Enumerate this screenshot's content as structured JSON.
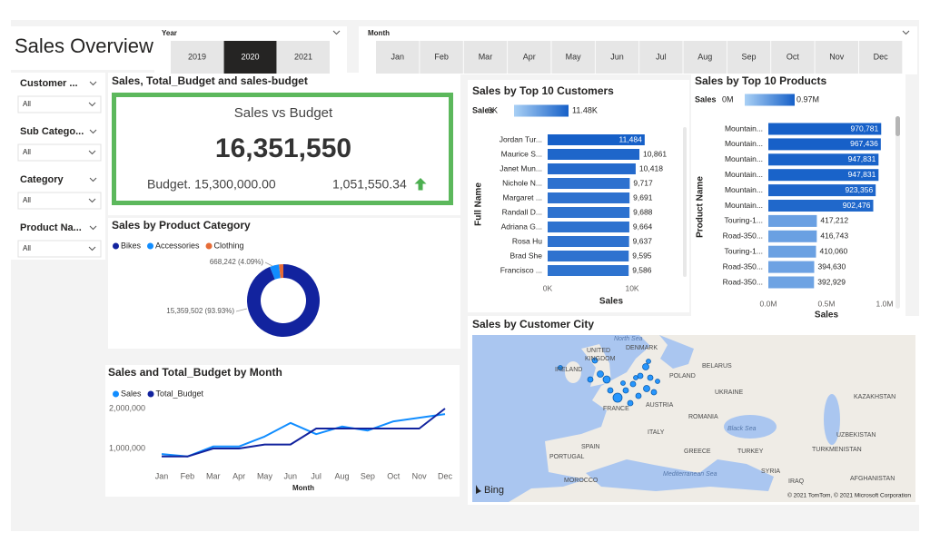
{
  "header": {
    "title": "Sales Overview"
  },
  "year_slicer": {
    "title": "Year",
    "options": [
      "2019",
      "2020",
      "2021"
    ],
    "selected": "2020"
  },
  "month_slicer": {
    "title": "Month",
    "options": [
      "Jan",
      "Feb",
      "Mar",
      "Apr",
      "May",
      "Jun",
      "Jul",
      "Aug",
      "Sep",
      "Oct",
      "Nov",
      "Dec"
    ]
  },
  "filters": [
    {
      "title": "Customer ...",
      "value": "All"
    },
    {
      "title": "Sub Catego...",
      "value": "All"
    },
    {
      "title": "Category",
      "value": "All"
    },
    {
      "title": "Product Na...",
      "value": "All"
    }
  ],
  "card": {
    "title": "Sales, Total_Budget and sales-budget",
    "heading": "Sales vs Budget",
    "value": "16,351,550",
    "budget": "Budget. 15,300,000.00",
    "variance": "1,051,550.34"
  },
  "chart_data": [
    {
      "type": "pie",
      "title": "Sales by Product Category",
      "donut": true,
      "categories": [
        "Bikes",
        "Accessories",
        "Clothing"
      ],
      "values": [
        15359502,
        668242,
        323806
      ],
      "value_labels": [
        "15,359,502 (93.93%)",
        "668,242 (4.09%)",
        null
      ],
      "colors": [
        "#12239e",
        "#118dff",
        "#e66c37"
      ]
    },
    {
      "type": "line",
      "title": "Sales and Total_Budget by Month",
      "x_label": "Month",
      "categories": [
        "Jan",
        "Feb",
        "Mar",
        "Apr",
        "May",
        "Jun",
        "Jul",
        "Aug",
        "Sep",
        "Oct",
        "Nov",
        "Dec"
      ],
      "series": [
        {
          "name": "Sales",
          "color": "#118dff",
          "values": [
            860000,
            800000,
            1050000,
            1050000,
            1300000,
            1640000,
            1360000,
            1550000,
            1450000,
            1680000,
            1770000,
            1860000
          ]
        },
        {
          "name": "Total_Budget",
          "color": "#12239e",
          "values": [
            800000,
            800000,
            1000000,
            1000000,
            1100000,
            1100000,
            1500000,
            1500000,
            1500000,
            1500000,
            1500000,
            2000000
          ]
        }
      ],
      "ylim": [
        600000,
        2200000
      ],
      "yticks": [
        {
          "value": 1000000,
          "label": "1,000,000"
        },
        {
          "value": 2000000,
          "label": "2,000,000"
        }
      ],
      "grid": false
    },
    {
      "type": "hbar",
      "title": "Sales by Top 10 Customers",
      "x_label": "Sales",
      "y_label": "Full Name",
      "categories": [
        "Jordan Tur...",
        "Maurice S...",
        "Janet Mun...",
        "Nichole N...",
        "Margaret ...",
        "Randall D...",
        "Adriana G...",
        "Rosa Hu",
        "Brad She",
        "Francisco ..."
      ],
      "values": [
        11484,
        10861,
        10418,
        9717,
        9691,
        9688,
        9664,
        9637,
        9595,
        9586
      ],
      "value_labels": [
        "11,484",
        "10,861",
        "10,418",
        "9,717",
        "9,691",
        "9,688",
        "9,664",
        "9,637",
        "9,595",
        "9,586"
      ],
      "xlim": [
        0,
        11500
      ],
      "xticks": [
        {
          "value": 0,
          "label": "0K"
        },
        {
          "value": 10000,
          "label": "10K"
        }
      ],
      "color_scale": {
        "title": "Sales",
        "min": {
          "value": 0,
          "label": "0K",
          "color": "#a9d0f5"
        },
        "max": {
          "value": 11484,
          "label": "11.48K",
          "color": "#1660c8"
        }
      }
    },
    {
      "type": "hbar",
      "title": "Sales by Top 10 Products",
      "x_label": "Sales",
      "y_label": "Product Name",
      "categories": [
        "Mountain...",
        "Mountain...",
        "Mountain...",
        "Mountain...",
        "Mountain...",
        "Mountain...",
        "Touring-1...",
        "Road-350...",
        "Touring-1...",
        "Road-350...",
        "Road-350..."
      ],
      "values": [
        970781,
        967436,
        947831,
        947831,
        923356,
        902476,
        417212,
        416743,
        410060,
        394630,
        392929
      ],
      "value_labels": [
        "970,781",
        "967,436",
        "947,831",
        "947,831",
        "923,356",
        "902,476",
        "417,212",
        "416,743",
        "410,060",
        "394,630",
        "392,929"
      ],
      "xlim": [
        0,
        1000000
      ],
      "xticks": [
        {
          "value": 0,
          "label": "0.0M"
        },
        {
          "value": 500000,
          "label": "0.5M"
        },
        {
          "value": 1000000,
          "label": "1.0M"
        }
      ],
      "color_scale": {
        "title": "Sales",
        "min": {
          "value": 0,
          "label": "0M",
          "color": "#a9d0f5"
        },
        "max": {
          "value": 970781,
          "label": "0.97M",
          "color": "#1660c8"
        }
      }
    }
  ],
  "map": {
    "title": "Sales by Customer City",
    "labels": [
      "North Sea",
      "UNITED",
      "KINGDOM",
      "IRELAND",
      "DENMARK",
      "BELARUS",
      "POLAND",
      "UKRAINE",
      "KAZAKHSTAN",
      "FRANCE",
      "AUSTRIA",
      "ROMANIA",
      "Black Sea",
      "SPAIN",
      "PORTUGAL",
      "ITALY",
      "GREECE",
      "TURKEY",
      "TURKMENISTAN",
      "UZBEKISTAN",
      "MOROCCO",
      "Mediterranean Sea",
      "SYRIA",
      "IRAQ",
      "AFGHANISTAN"
    ],
    "logo": "Bing",
    "attribution": "© 2021 TomTom, © 2021 Microsoft Corporation"
  }
}
